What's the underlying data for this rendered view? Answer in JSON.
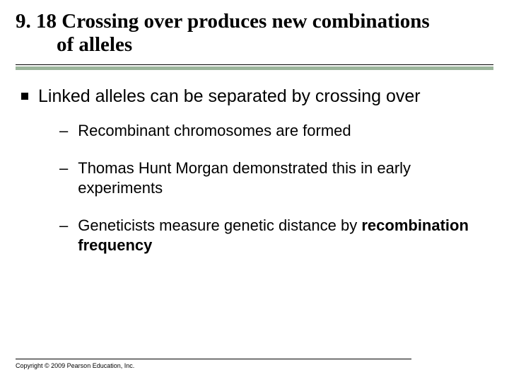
{
  "colors": {
    "background": "#ffffff",
    "text": "#000000",
    "accent_rule": "#9bb59b"
  },
  "typography": {
    "title_font": "Times New Roman",
    "title_size_pt": 29,
    "title_weight": "bold",
    "body_font": "Arial",
    "lvl1_size_pt": 25,
    "lvl2_size_pt": 22,
    "footer_size_pt": 9
  },
  "title": {
    "line1": "9. 18 Crossing over produces new combinations",
    "line2": "of alleles"
  },
  "content": {
    "lvl1_text": "Linked alleles can be separated by crossing over",
    "sub_items": [
      {
        "prefix": "",
        "plain": "Recombinant chromosomes are formed",
        "bold": ""
      },
      {
        "prefix": "",
        "plain": "Thomas Hunt Morgan demonstrated this in early experiments",
        "bold": ""
      },
      {
        "prefix": "Geneticists measure genetic distance by ",
        "plain": "",
        "bold": "recombination frequency"
      }
    ]
  },
  "footer": {
    "text": "Copyright © 2009 Pearson Education, Inc."
  }
}
